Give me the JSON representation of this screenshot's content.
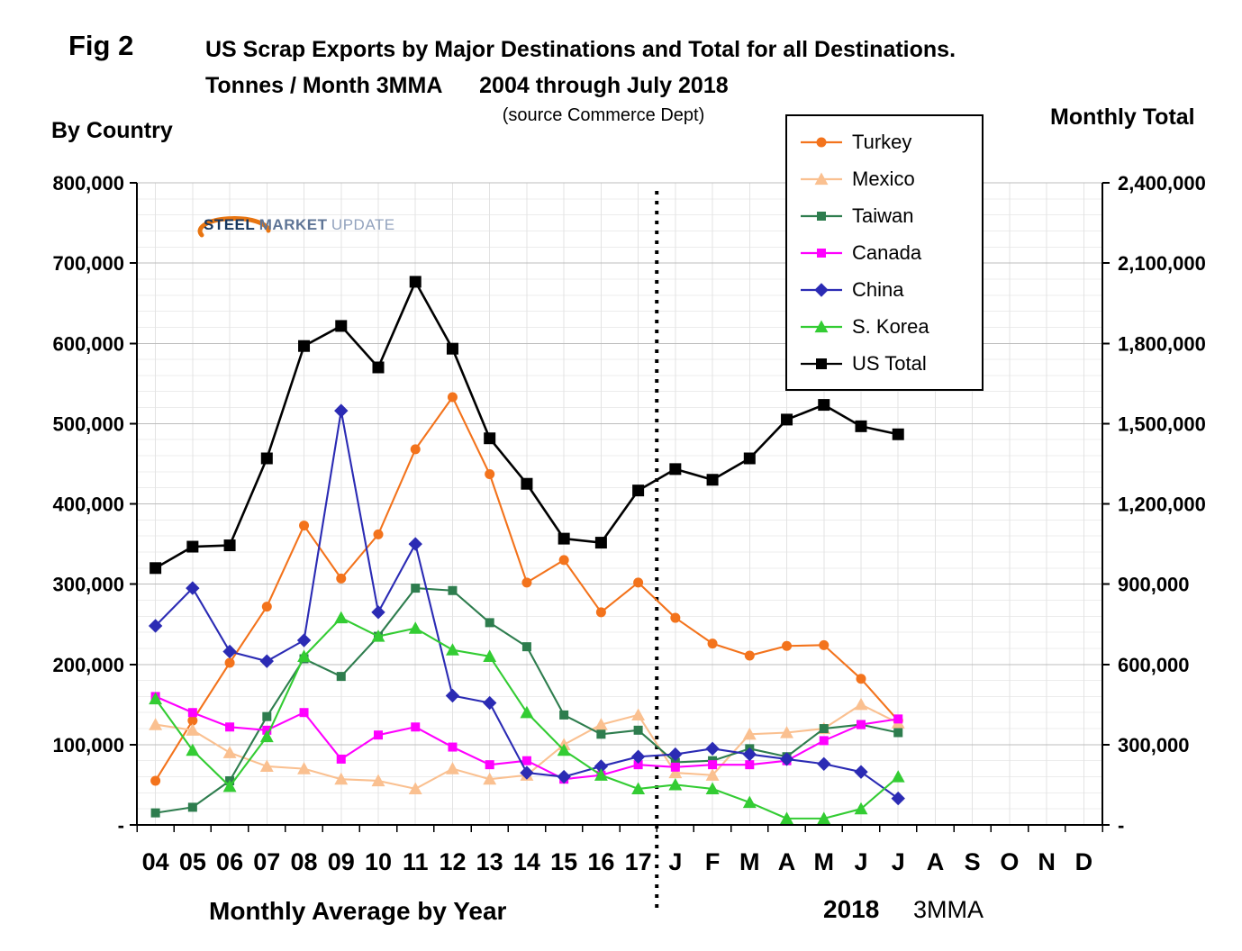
{
  "figure": {
    "fig_label": "Fig 2",
    "title_line1": "US Scrap Exports by Major Destinations and Total for all Destinations.",
    "title_line2": "Tonnes / Month 3MMA      2004 through July 2018",
    "source": "(source Commerce Dept)",
    "left_axis_title": "By Country",
    "right_axis_title": "Monthly Total",
    "bottom_label_left": "Monthly Average by Year",
    "bottom_label_year": "2018",
    "bottom_label_right": "3MMA"
  },
  "logo": {
    "word1": "STEEL",
    "word2": "MARKET",
    "word3": "UPDATE",
    "swoosh_color": "#E87511"
  },
  "chart_data": {
    "type": "line",
    "title": "US Scrap Exports by Major Destinations and Total for all Destinations. Tonnes / Month 3MMA, 2004 through July 2018",
    "units": "Tonnes / Month 3MMA",
    "categories": [
      "04",
      "05",
      "06",
      "07",
      "08",
      "09",
      "10",
      "11",
      "12",
      "13",
      "14",
      "15",
      "16",
      "17",
      "J",
      "F",
      "M",
      "A",
      "M",
      "J",
      "J",
      "A",
      "S",
      "O",
      "N",
      "D"
    ],
    "separator_after_index": 13,
    "legend_position": "top-right",
    "grid": {
      "major": true,
      "minor": true,
      "vertical": true
    },
    "left_axis": {
      "min": 0,
      "max": 800000,
      "major_step": 100000,
      "minor_step": 20000,
      "tick_labels": [
        "800,000",
        "700,000",
        "600,000",
        "500,000",
        "400,000",
        "300,000",
        "200,000",
        "100,000",
        "-"
      ]
    },
    "right_axis": {
      "min": 0,
      "max": 2400000,
      "major_step": 300000,
      "tick_labels": [
        "2,400,000",
        "2,100,000",
        "1,800,000",
        "1,500,000",
        "1,200,000",
        "900,000",
        "600,000",
        "300,000",
        "-"
      ]
    },
    "series": [
      {
        "name": "Turkey",
        "axis": "left",
        "color": "#F3731C",
        "marker": "circle",
        "values": [
          55000,
          130000,
          202000,
          272000,
          373000,
          307000,
          362000,
          468000,
          533000,
          437000,
          302000,
          330000,
          265000,
          302000,
          258000,
          226000,
          211000,
          223000,
          224000,
          182000,
          130000,
          null,
          null,
          null,
          null,
          null
        ]
      },
      {
        "name": "Mexico",
        "axis": "left",
        "color": "#FAC090",
        "marker": "triangle",
        "values": [
          125000,
          118000,
          90000,
          73000,
          70000,
          57000,
          55000,
          45000,
          70000,
          57000,
          62000,
          100000,
          125000,
          137000,
          65000,
          62000,
          113000,
          115000,
          120000,
          150000,
          127000,
          null,
          null,
          null,
          null,
          null
        ]
      },
      {
        "name": "Taiwan",
        "axis": "left",
        "color": "#2E7D4E",
        "marker": "square",
        "values": [
          15000,
          22000,
          55000,
          135000,
          207000,
          185000,
          235000,
          295000,
          292000,
          252000,
          222000,
          137000,
          113000,
          118000,
          78000,
          80000,
          95000,
          85000,
          120000,
          125000,
          115000,
          null,
          null,
          null,
          null,
          null
        ]
      },
      {
        "name": "Canada",
        "axis": "left",
        "color": "#FF00FF",
        "marker": "square",
        "values": [
          160000,
          140000,
          122000,
          118000,
          140000,
          82000,
          112000,
          122000,
          97000,
          75000,
          80000,
          57000,
          62000,
          75000,
          72000,
          75000,
          75000,
          80000,
          105000,
          125000,
          132000,
          null,
          null,
          null,
          null,
          null
        ]
      },
      {
        "name": "China",
        "axis": "left",
        "color": "#2B2BB4",
        "marker": "diamond",
        "values": [
          248000,
          295000,
          216000,
          204000,
          230000,
          516000,
          265000,
          350000,
          161000,
          152000,
          65000,
          60000,
          73000,
          85000,
          88000,
          95000,
          88000,
          82000,
          76000,
          66000,
          33000,
          null,
          null,
          null,
          null,
          null
        ]
      },
      {
        "name": "S. Korea",
        "axis": "left",
        "color": "#33CC33",
        "marker": "triangle",
        "values": [
          157000,
          93000,
          48000,
          110000,
          210000,
          258000,
          235000,
          245000,
          218000,
          210000,
          140000,
          93000,
          62000,
          45000,
          50000,
          45000,
          28000,
          8000,
          8000,
          20000,
          60000,
          null,
          null,
          null,
          null,
          null
        ]
      },
      {
        "name": "US Total",
        "axis": "right",
        "color": "#000000",
        "marker": "square",
        "values": [
          960000,
          1040000,
          1045000,
          1370000,
          1790000,
          1865000,
          1710000,
          2030000,
          1780000,
          1445000,
          1275000,
          1070000,
          1055000,
          1250000,
          1330000,
          1290000,
          1370000,
          1515000,
          1570000,
          1490000,
          1460000,
          null,
          null,
          null,
          null,
          null
        ]
      }
    ]
  }
}
